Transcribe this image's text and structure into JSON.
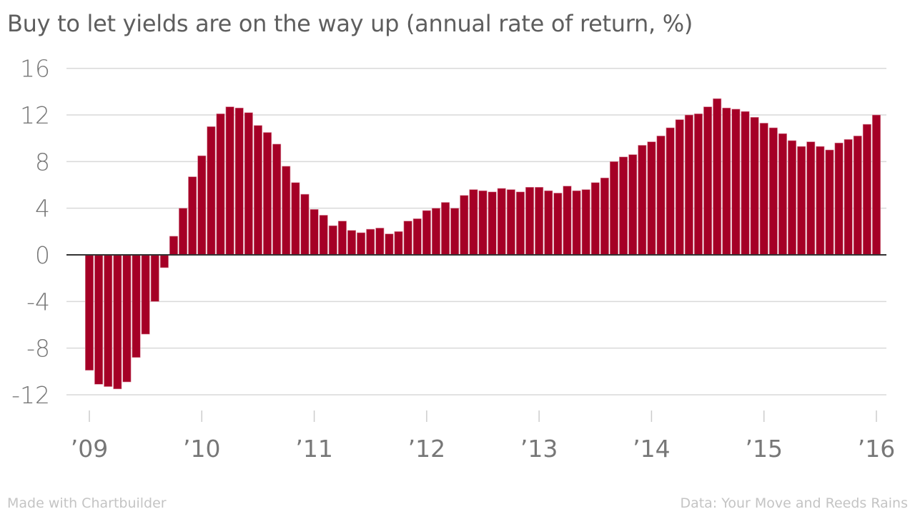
{
  "chart_data": {
    "type": "bar",
    "title": "Buy to let yields are on the way up (annual rate of return, %)",
    "xlabel": "",
    "ylabel": "",
    "ylim": [
      -12,
      16
    ],
    "yticks": [
      16,
      12,
      8,
      4,
      0,
      -4,
      -8,
      -12
    ],
    "ytick_labels": [
      "16",
      "12",
      "8",
      "4",
      "0",
      "-4",
      "-8",
      "-12"
    ],
    "xtick_labels": [
      "’09",
      "’10",
      "’11",
      "’12",
      "’13",
      "’14",
      "’15",
      "’16"
    ],
    "grid": true,
    "color": "#a50026",
    "frequency": "monthly",
    "start": "Jan 2009",
    "end": "Jan 2016",
    "values": [
      -9.9,
      -11.1,
      -11.3,
      -11.5,
      -10.9,
      -8.8,
      -6.8,
      -4.0,
      -1.1,
      1.6,
      4.0,
      6.7,
      8.5,
      11.0,
      12.1,
      12.7,
      12.6,
      12.2,
      11.1,
      10.5,
      9.5,
      7.6,
      6.2,
      5.2,
      3.9,
      3.4,
      2.5,
      2.9,
      2.1,
      1.9,
      2.2,
      2.3,
      1.8,
      2.0,
      2.9,
      3.1,
      3.8,
      4.0,
      4.5,
      4.0,
      5.1,
      5.6,
      5.5,
      5.4,
      5.7,
      5.6,
      5.4,
      5.8,
      5.8,
      5.5,
      5.3,
      5.9,
      5.5,
      5.6,
      6.2,
      6.6,
      8.0,
      8.4,
      8.6,
      9.4,
      9.7,
      10.2,
      10.9,
      11.6,
      12.0,
      12.1,
      12.7,
      13.4,
      12.6,
      12.5,
      12.3,
      11.8,
      11.3,
      10.9,
      10.4,
      9.8,
      9.3,
      9.7,
      9.3,
      9.0,
      9.6,
      9.9,
      10.2,
      11.2,
      12.0
    ]
  },
  "footer": {
    "left": "Made with Chartbuilder",
    "right": "Data: Your Move and Reeds Rains"
  }
}
